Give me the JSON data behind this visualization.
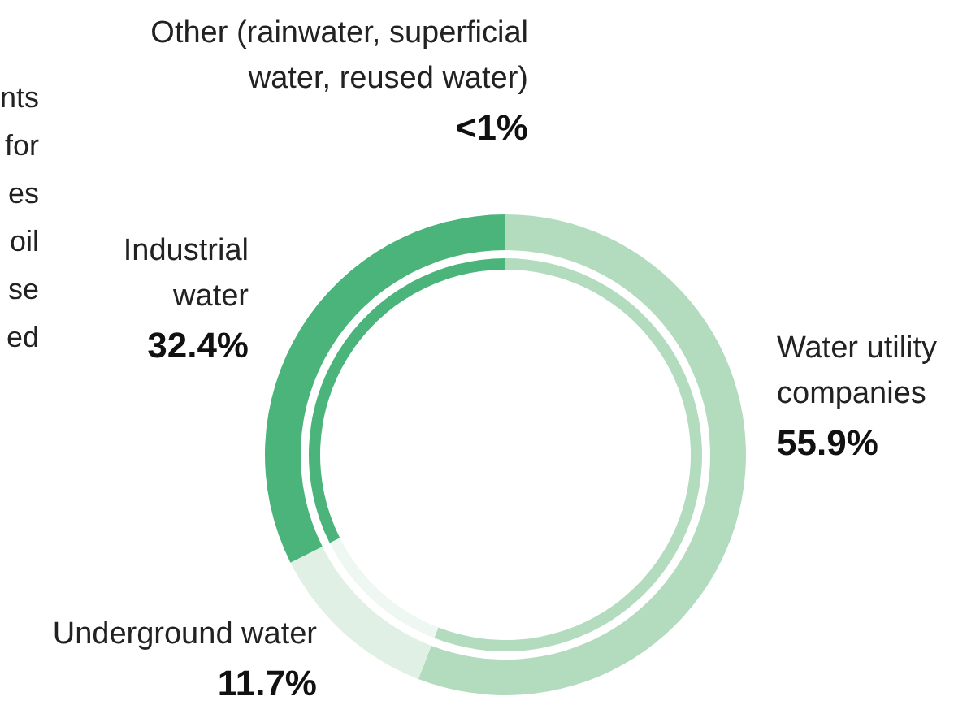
{
  "chart_data": {
    "type": "donut",
    "categories": [
      "Water utility companies",
      "Underground water",
      "Industrial water",
      "Other (rainwater, superficial water, reused water)"
    ],
    "series": [
      {
        "values": [
          55.9,
          11.7,
          32.4,
          0
        ],
        "colors": [
          "#b3dcbf",
          "#e1f0e5",
          "#4bb47b",
          "#4bb47b"
        ]
      },
      {
        "values": [
          55.9,
          11.7,
          32.4,
          0
        ],
        "colors": [
          "#b3dcbf",
          "#eef7f1",
          "#4bb47b",
          "#4bb47b"
        ]
      }
    ],
    "value_labels": [
      "55.9%",
      "11.7%",
      "32.4%",
      "<1%"
    ],
    "annotations": [
      "nts",
      "for",
      "es",
      "oil",
      "se",
      "ed"
    ]
  }
}
